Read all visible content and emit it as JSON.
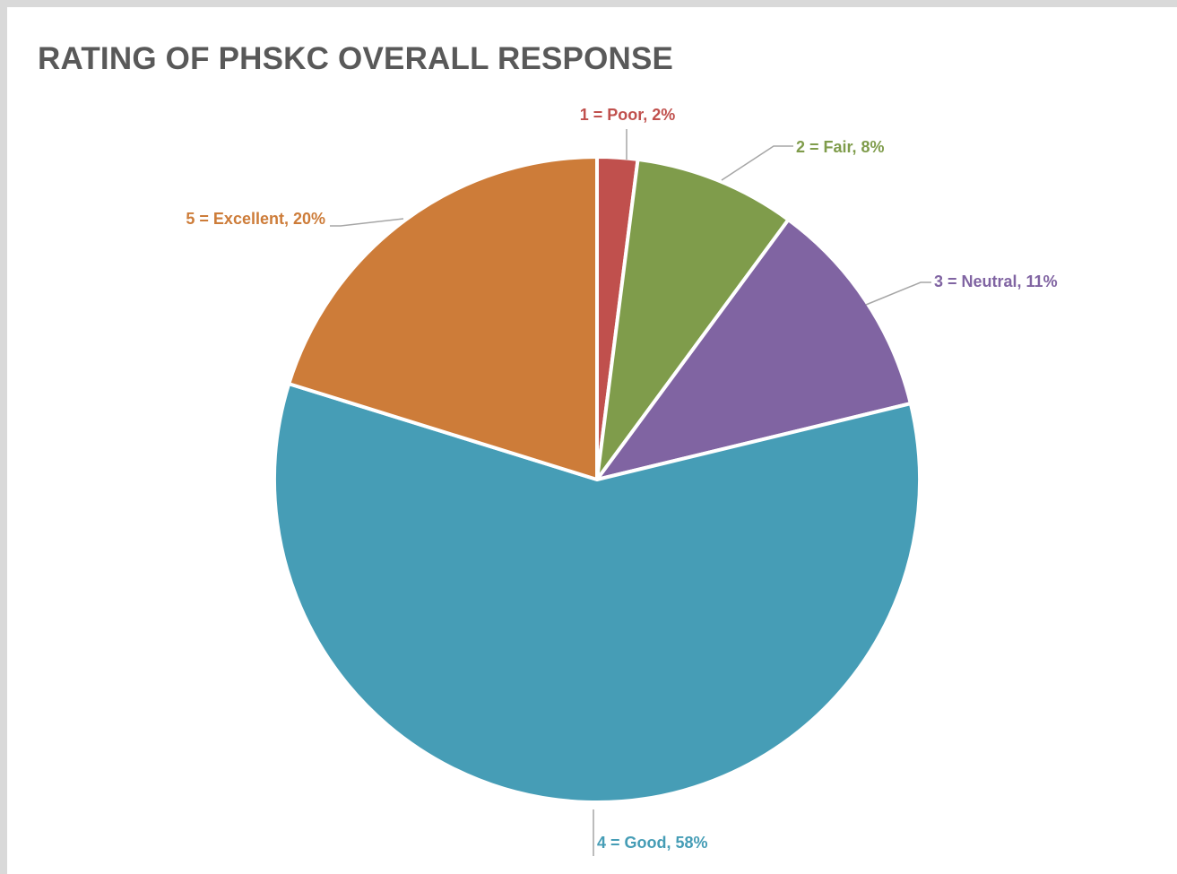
{
  "chart_data": {
    "type": "pie",
    "title": "RATING OF PHSKC OVERALL RESPONSE",
    "slices": [
      {
        "name": "1 = Poor",
        "value": 2,
        "label": "1 = Poor, 2%",
        "color": "#c0504d"
      },
      {
        "name": "2 = Fair",
        "value": 8,
        "label": "2 = Fair, 8%",
        "color": "#7f9c4b"
      },
      {
        "name": "3 = Neutral",
        "value": 11,
        "label": "3 = Neutral, 11%",
        "color": "#8064a2"
      },
      {
        "name": "4 = Good",
        "value": 58,
        "label": "4 = Good, 58%",
        "color": "#469db6"
      },
      {
        "name": "5 = Excellent",
        "value": 20,
        "label": "5 = Excellent, 20%",
        "color": "#cd7c39"
      }
    ],
    "legend": "none",
    "data_labels": "outside-with-leader-lines"
  },
  "colors": {
    "border": "#d9d9d9",
    "title": "#595959",
    "slice_separator": "#ffffff",
    "leader_line": "#a6a6a6"
  }
}
